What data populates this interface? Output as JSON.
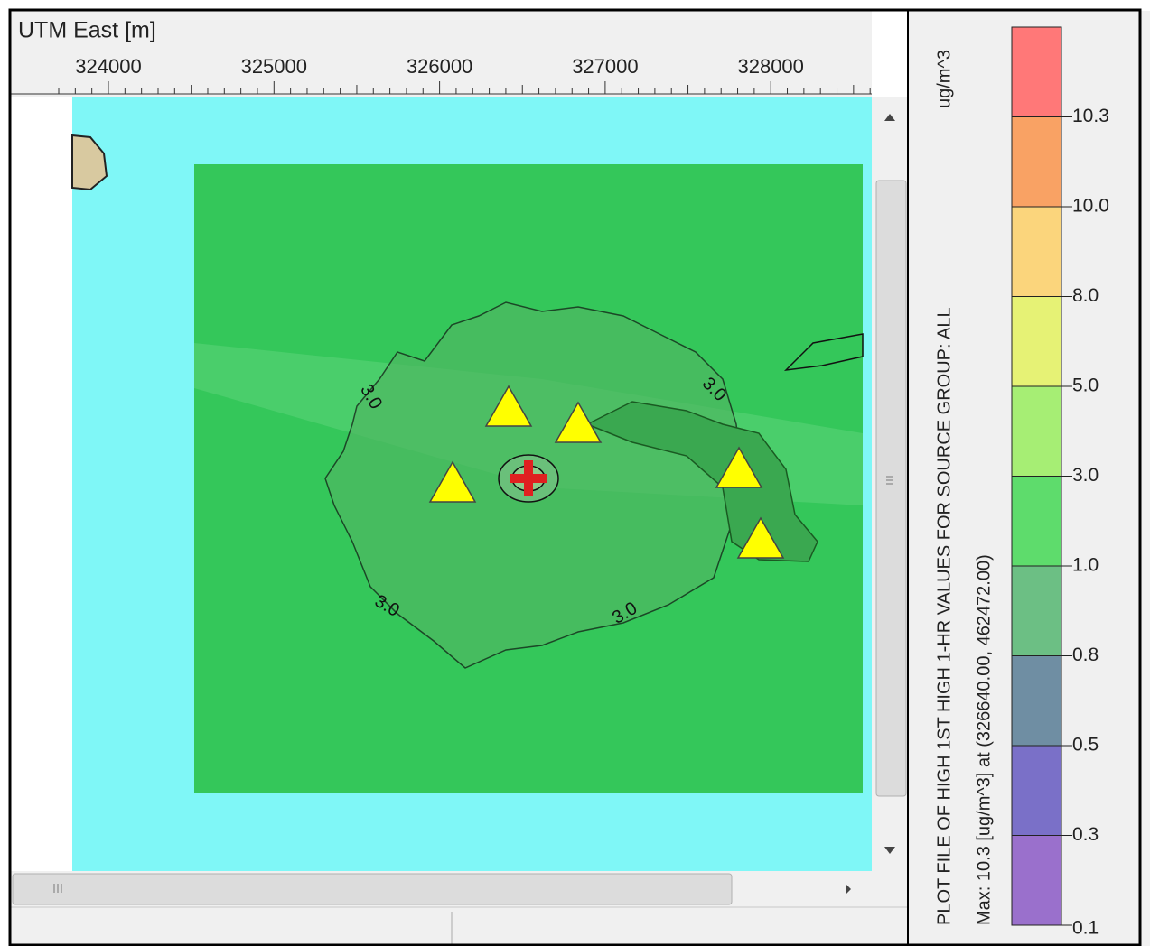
{
  "axis": {
    "title": "UTM East [m]",
    "ticks": [
      "324000",
      "325000",
      "326000",
      "327000",
      "328000"
    ]
  },
  "map": {
    "contour_labels": [
      "3.0",
      "3.0",
      "3.0",
      "3.0"
    ]
  },
  "legend": {
    "title": "PLOT FILE OF HIGH 1ST HIGH 1-HR VALUES FOR SOURCE GROUP: ALL",
    "unit": "ug/m^3",
    "max_line": "Max:  10.3  [ug/m^3]  at  (326640.00, 462472.00)",
    "levels": [
      {
        "label": "10.3",
        "color": "#ff7878"
      },
      {
        "label": "10.0",
        "color": "#f9a264"
      },
      {
        "label": "8.0",
        "color": "#fbd57c"
      },
      {
        "label": "5.0",
        "color": "#e6f275"
      },
      {
        "label": "3.0",
        "color": "#a6ee74"
      },
      {
        "label": "1.0",
        "color": "#5edc6c"
      },
      {
        "label": "0.8",
        "color": "#6cbf84"
      },
      {
        "label": "0.5",
        "color": "#6f8ea3"
      },
      {
        "label": "0.3",
        "color": "#7a70c8"
      },
      {
        "label": "0.1",
        "color": "#9a70cc"
      }
    ]
  }
}
